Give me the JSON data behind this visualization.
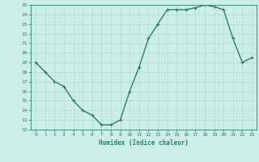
{
  "x": [
    0,
    1,
    2,
    3,
    4,
    5,
    6,
    7,
    8,
    9,
    10,
    11,
    12,
    13,
    14,
    15,
    16,
    17,
    18,
    19,
    20,
    21,
    22,
    23
  ],
  "y": [
    19,
    18,
    17,
    16.5,
    15,
    14,
    13.5,
    12.5,
    12.5,
    13,
    16,
    18.5,
    21.5,
    23,
    24.5,
    24.5,
    24.5,
    24.7,
    25,
    24.8,
    24.5,
    21.5,
    19,
    19.5
  ],
  "line_color": "#2d7d6e",
  "bg_color": "#cceee8",
  "grid_color": "#b5ddd5",
  "xlabel": "Humidex (Indice chaleur)",
  "ylim": [
    12,
    25
  ],
  "xlim": [
    -0.5,
    23.5
  ],
  "yticks": [
    12,
    13,
    14,
    15,
    16,
    17,
    18,
    19,
    20,
    21,
    22,
    23,
    24,
    25
  ],
  "xticks": [
    0,
    1,
    2,
    3,
    4,
    5,
    6,
    7,
    8,
    9,
    10,
    11,
    12,
    13,
    14,
    15,
    16,
    17,
    18,
    19,
    20,
    21,
    22,
    23
  ],
  "marker": "+",
  "marker_size": 3.5,
  "line_width": 1.0
}
